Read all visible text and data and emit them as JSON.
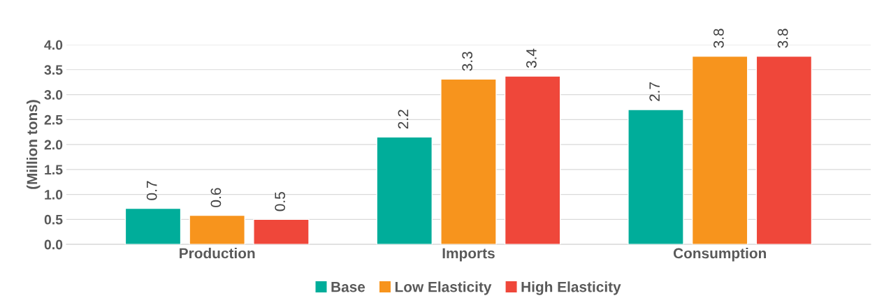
{
  "chart_data": {
    "type": "bar",
    "ylabel": "(Million tons)",
    "categories": [
      "Production",
      "Imports",
      "Consumption"
    ],
    "series": [
      {
        "name": "Base",
        "color": "#00ad9a",
        "values": [
          0.72,
          2.15,
          2.7
        ],
        "value_labels": [
          "0.7",
          "2.2",
          "2.7"
        ]
      },
      {
        "name": "Low Elasticity",
        "color": "#f7941d",
        "values": [
          0.58,
          3.31,
          3.77
        ],
        "value_labels": [
          "0.6",
          "3.3",
          "3.8"
        ]
      },
      {
        "name": "High Elasticity",
        "color": "#ef473a",
        "values": [
          0.5,
          3.37,
          3.77
        ],
        "value_labels": [
          "0.5",
          "3.4",
          "3.8"
        ]
      }
    ],
    "ylim": [
      0,
      4.0
    ],
    "yticks": [
      {
        "value": 0,
        "label": "0.0"
      },
      0.5,
      {
        "value": 1,
        "label": "1.0"
      },
      1.5,
      {
        "value": 2,
        "label": "2.0"
      },
      2.5,
      {
        "value": 3,
        "label": "3.0"
      },
      3.5,
      {
        "value": 4,
        "label": "4.0"
      }
    ],
    "grid": "y",
    "legend": "bottom"
  }
}
